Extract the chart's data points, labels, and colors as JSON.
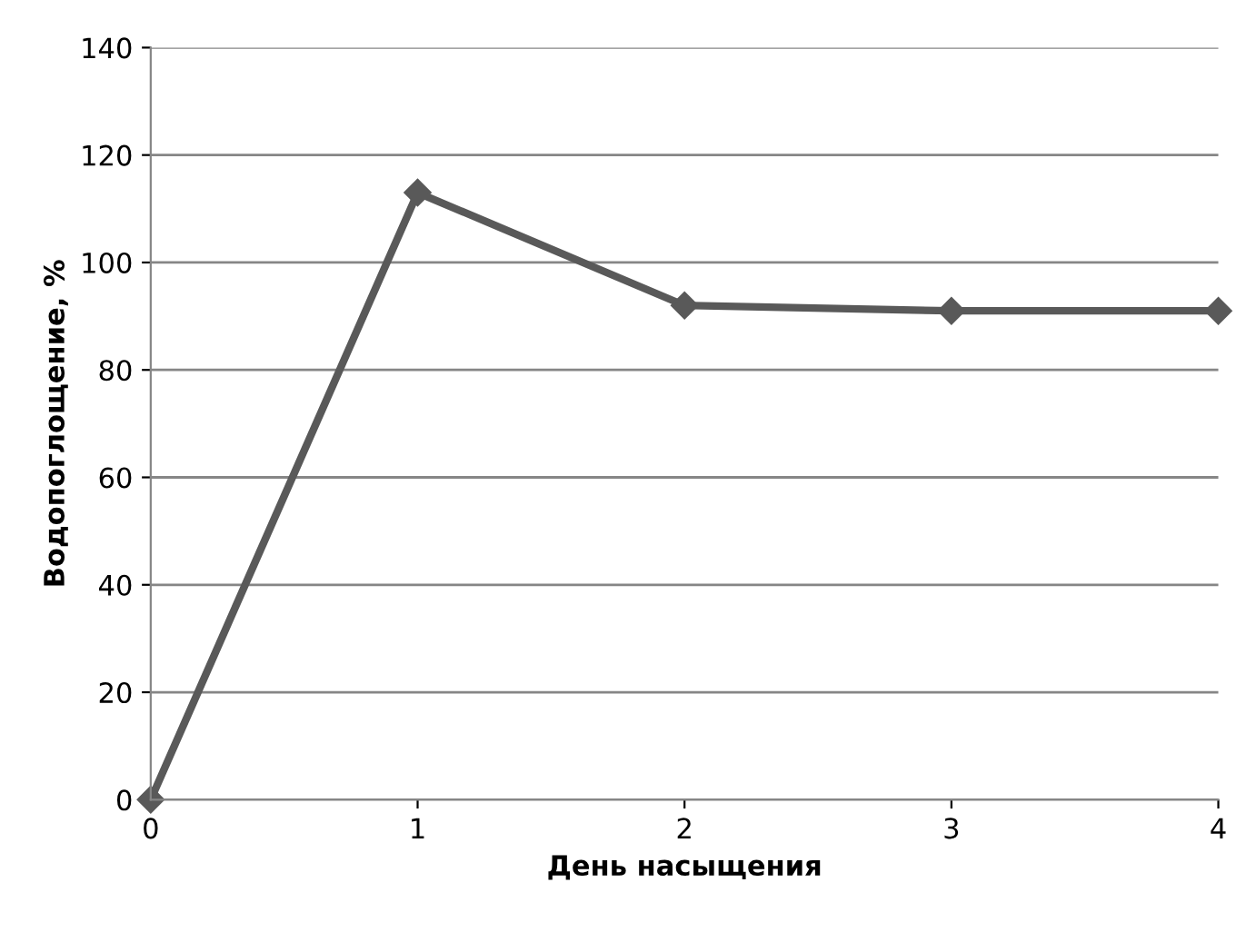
{
  "chart_data": {
    "type": "line",
    "xlabel": "День насыщения",
    "ylabel": "Водопоглощение, %",
    "x": [
      0,
      1,
      2,
      3,
      4
    ],
    "series": [
      {
        "color": "#595959",
        "values": [
          0,
          113,
          92,
          91,
          91
        ]
      }
    ],
    "xlim": [
      0,
      4
    ],
    "xticks": [
      0,
      1,
      2,
      3,
      4
    ],
    "ylim": [
      0,
      140
    ],
    "yticks": [
      0,
      20,
      40,
      60,
      80,
      100,
      120,
      140
    ],
    "grid": "y",
    "marker": "diamond",
    "line_style": "solid"
  }
}
